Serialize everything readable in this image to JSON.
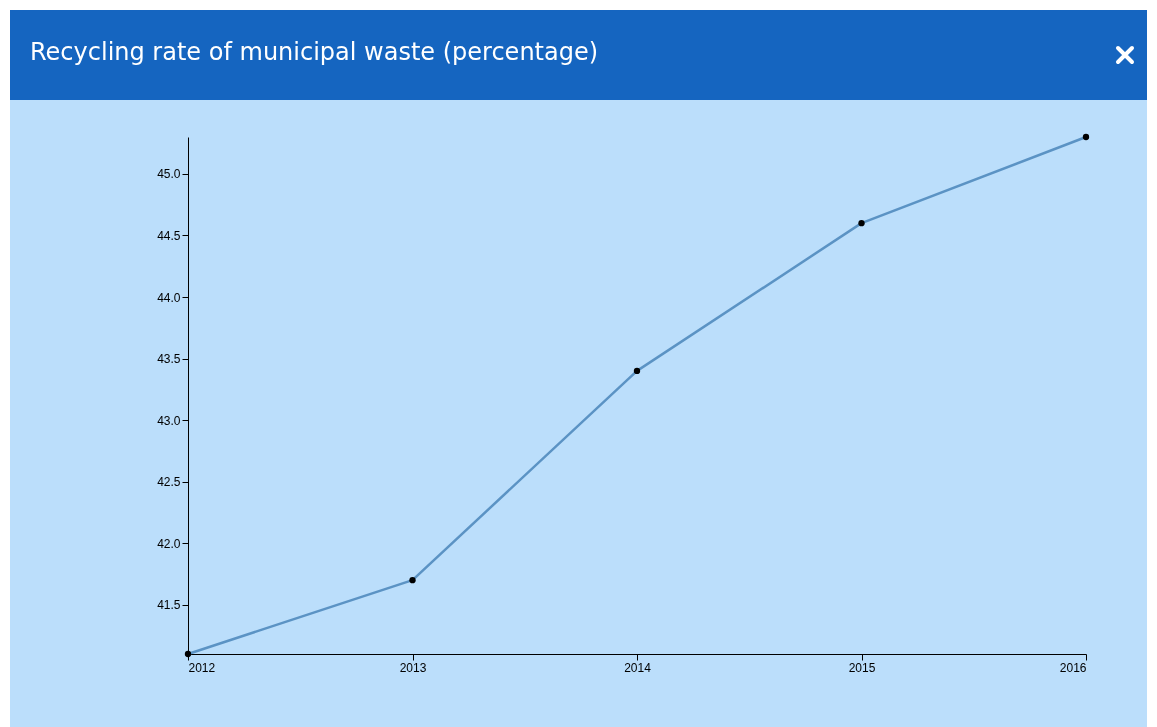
{
  "chart_data": {
    "type": "line",
    "title": "Recycling rate of municipal waste (percentage)",
    "x": [
      2012,
      2013,
      2014,
      2015,
      2016
    ],
    "series": [
      {
        "color": "#5b93c4",
        "values": [
          41.1,
          41.7,
          43.4,
          44.6,
          45.3
        ]
      }
    ],
    "xlim": [
      2012,
      2016
    ],
    "xticks": [
      2012,
      2013,
      2014,
      2015,
      2016
    ],
    "ylim": [
      41.1,
      45.3
    ],
    "yticks": [
      41.5,
      {
        "value": 42,
        "label": "42.0"
      },
      42.5,
      {
        "value": 43,
        "label": "43.0"
      },
      43.5,
      {
        "value": 44,
        "label": "44.0"
      },
      44.5,
      {
        "value": 45,
        "label": "45.0"
      }
    ],
    "marker": "circle",
    "grid": false,
    "legend": false
  }
}
